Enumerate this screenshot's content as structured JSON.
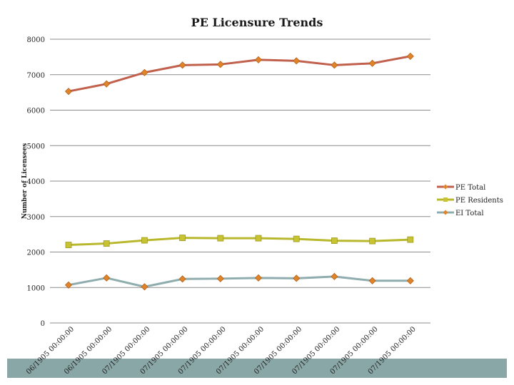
{
  "chart_data": {
    "type": "line",
    "title": "PE Licensure Trends",
    "xlabel": "",
    "ylabel": "Number of Licensees",
    "ylim": [
      0,
      8000
    ],
    "yticks": [
      0,
      1000,
      2000,
      3000,
      4000,
      5000,
      6000,
      7000,
      8000
    ],
    "grid": true,
    "legend_position": "right",
    "categories": [
      "06/1905 00:00:00",
      "06/1905 00:00:00",
      "07/1905 00:00:00",
      "07/1905 00:00:00",
      "07/1905 00:00:00",
      "07/1905 00:00:00",
      "07/1905 00:00:00",
      "07/1905 00:00:00",
      "07/1905 00:00:00",
      "07/1905 00:00:00"
    ],
    "series": [
      {
        "name": "PE Total",
        "color": "#c0604d",
        "marker": "diamond-orange",
        "values": [
          6530,
          6740,
          7060,
          7270,
          7290,
          7420,
          7390,
          7270,
          7320,
          7520
        ]
      },
      {
        "name": "PE Residents",
        "color": "#b9b82c",
        "marker": "square-yellow",
        "values": [
          2200,
          2240,
          2330,
          2400,
          2390,
          2390,
          2370,
          2320,
          2310,
          2350
        ]
      },
      {
        "name": "EI Total",
        "color": "#8fadae",
        "marker": "diamond-orange",
        "values": [
          1070,
          1270,
          1020,
          1240,
          1250,
          1270,
          1260,
          1310,
          1190,
          1190
        ]
      }
    ]
  }
}
